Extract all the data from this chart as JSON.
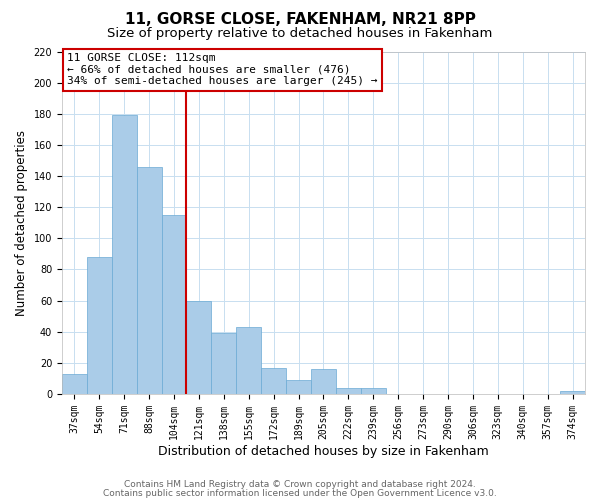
{
  "title": "11, GORSE CLOSE, FAKENHAM, NR21 8PP",
  "subtitle": "Size of property relative to detached houses in Fakenham",
  "xlabel": "Distribution of detached houses by size in Fakenham",
  "ylabel": "Number of detached properties",
  "categories": [
    "37sqm",
    "54sqm",
    "71sqm",
    "88sqm",
    "104sqm",
    "121sqm",
    "138sqm",
    "155sqm",
    "172sqm",
    "189sqm",
    "205sqm",
    "222sqm",
    "239sqm",
    "256sqm",
    "273sqm",
    "290sqm",
    "306sqm",
    "323sqm",
    "340sqm",
    "357sqm",
    "374sqm"
  ],
  "values": [
    13,
    88,
    179,
    146,
    115,
    60,
    39,
    43,
    17,
    9,
    16,
    4,
    4,
    0,
    0,
    0,
    0,
    0,
    0,
    0,
    2
  ],
  "bar_color": "#aacce8",
  "bar_edge_color": "#6aaad4",
  "vline_color": "#cc0000",
  "vline_position": 4.5,
  "ylim": [
    0,
    220
  ],
  "yticks": [
    0,
    20,
    40,
    60,
    80,
    100,
    120,
    140,
    160,
    180,
    200,
    220
  ],
  "annotation_title": "11 GORSE CLOSE: 112sqm",
  "annotation_line1": "← 66% of detached houses are smaller (476)",
  "annotation_line2": "34% of semi-detached houses are larger (245) →",
  "annotation_box_color": "#ffffff",
  "annotation_box_edge": "#cc0000",
  "footer1": "Contains HM Land Registry data © Crown copyright and database right 2024.",
  "footer2": "Contains public sector information licensed under the Open Government Licence v3.0.",
  "background_color": "#ffffff",
  "grid_color": "#c8dff0",
  "title_fontsize": 11,
  "subtitle_fontsize": 9.5,
  "xlabel_fontsize": 9,
  "ylabel_fontsize": 8.5,
  "tick_fontsize": 7,
  "annot_fontsize": 8,
  "footer_fontsize": 6.5
}
